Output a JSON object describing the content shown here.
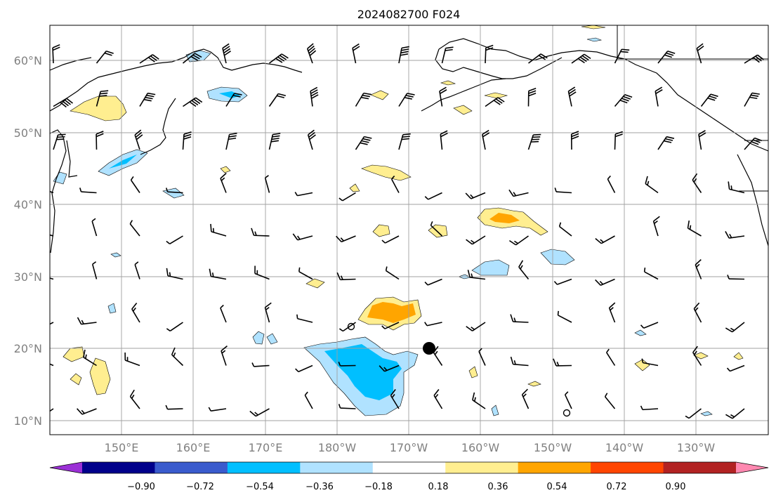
{
  "title": "2024082700 F024",
  "lat_labels": [
    "10°N",
    "20°N",
    "30°N",
    "40°N",
    "50°N",
    "60°N"
  ],
  "lon_labels": [
    "150°E",
    "160°E",
    "170°E",
    "180°W",
    "170°W",
    "160°W",
    "150°W",
    "140°W",
    "130°W"
  ],
  "colorbar": {
    "ticks": [
      "−0.90",
      "−0.72",
      "−0.54",
      "−0.36",
      "−0.18",
      "0.18",
      "0.36",
      "0.54",
      "0.72",
      "0.90"
    ],
    "colors": [
      "#9b30d6",
      "#00008b",
      "#3a5bcd",
      "#00bfff",
      "#b0e2ff",
      "#ffffff",
      "#ffee90",
      "#ffa500",
      "#ff4500",
      "#b22222",
      "#ff88b0"
    ],
    "extend": "both"
  },
  "map": {
    "extent": {
      "lon_min": 140,
      "lon_max": 240,
      "lat_min": 8,
      "lat_max": 65
    },
    "grid": true,
    "features": [
      "coastlines",
      "borders",
      "wind barbs",
      "filled contours"
    ],
    "marker": {
      "lon": 193,
      "lat": 20
    }
  }
}
